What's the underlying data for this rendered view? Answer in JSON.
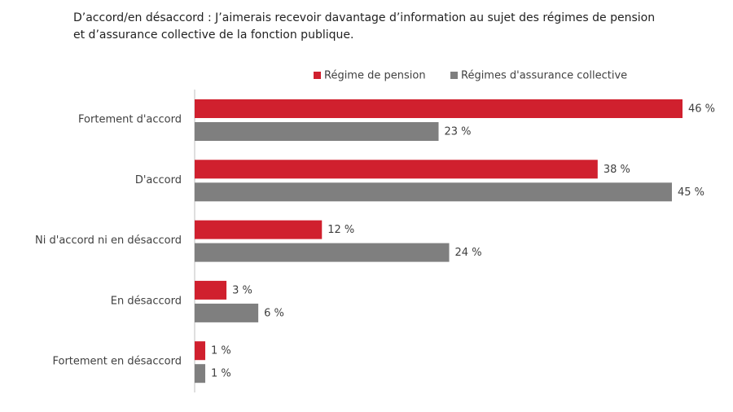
{
  "chart_data": {
    "type": "hbar",
    "title": "D’accord/en désaccord : J’aimerais recevoir davantage d’information au sujet des régimes de pension et d’assurance collective de la fonction publique.",
    "categories": [
      "Fortement d'accord",
      "D'accord",
      "Ni d'accord ni en désaccord",
      "En désaccord",
      "Fortement en désaccord"
    ],
    "series": [
      {
        "name": "Régime de pension",
        "color": "#d0202e",
        "values": [
          46,
          38,
          12,
          3,
          1
        ],
        "value_labels": [
          "46 %",
          "38 %",
          "12 %",
          "3 %",
          "1 %"
        ]
      },
      {
        "name": "Régimes d'assurance collective",
        "color": "#7f7f7f",
        "values": [
          23,
          45,
          24,
          6,
          1
        ],
        "value_labels": [
          "23 %",
          "45 %",
          "24 %",
          "6 %",
          "1 %"
        ]
      }
    ],
    "xlim": [
      0,
      46
    ]
  }
}
